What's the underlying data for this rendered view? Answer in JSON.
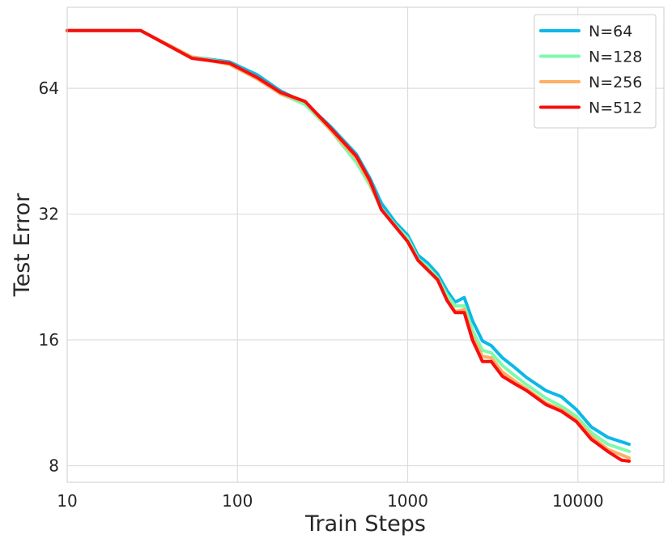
{
  "chart_data": {
    "type": "line",
    "xlabel": "Train Steps",
    "ylabel": "Test Error",
    "x_scale": "log",
    "y_scale": "log2",
    "xlim": [
      10,
      32000
    ],
    "ylim": [
      7.3,
      100
    ],
    "x_ticks": [
      10,
      100,
      1000,
      10000
    ],
    "x_tick_labels": [
      "10",
      "100",
      "1000",
      "10000"
    ],
    "y_ticks": [
      8,
      16,
      32,
      64
    ],
    "y_tick_labels": [
      "8",
      "16",
      "32",
      "64"
    ],
    "grid": true,
    "legend_position": "top-right",
    "series": [
      {
        "name": "N=64",
        "color": "#0cb8e8",
        "points": [
          [
            10,
            88
          ],
          [
            27,
            88
          ],
          [
            54,
            76
          ],
          [
            90,
            74
          ],
          [
            130,
            69
          ],
          [
            180,
            63
          ],
          [
            250,
            59
          ],
          [
            350,
            52
          ],
          [
            500,
            44.5
          ],
          [
            600,
            39
          ],
          [
            700,
            34
          ],
          [
            850,
            30.5
          ],
          [
            1000,
            28.5
          ],
          [
            1150,
            25.5
          ],
          [
            1300,
            24.5
          ],
          [
            1500,
            23
          ],
          [
            1700,
            21
          ],
          [
            1900,
            19.7
          ],
          [
            2150,
            20.2
          ],
          [
            2400,
            17.8
          ],
          [
            2750,
            15.9
          ],
          [
            3100,
            15.5
          ],
          [
            3600,
            14.5
          ],
          [
            4200,
            13.8
          ],
          [
            5000,
            13.0
          ],
          [
            6500,
            12.1
          ],
          [
            8000,
            11.7
          ],
          [
            9800,
            10.9
          ],
          [
            12000,
            9.9
          ],
          [
            15000,
            9.35
          ],
          [
            20000,
            9.0
          ]
        ]
      },
      {
        "name": "N=128",
        "color": "#7dfaab",
        "points": [
          [
            10,
            88
          ],
          [
            27,
            88
          ],
          [
            54,
            76
          ],
          [
            90,
            73.5
          ],
          [
            130,
            68
          ],
          [
            180,
            62
          ],
          [
            250,
            58.5
          ],
          [
            350,
            51
          ],
          [
            500,
            42.5
          ],
          [
            600,
            37.5
          ],
          [
            700,
            33
          ],
          [
            850,
            30
          ],
          [
            1000,
            28
          ],
          [
            1150,
            25
          ],
          [
            1300,
            24
          ],
          [
            1500,
            22.5
          ],
          [
            1700,
            20.5
          ],
          [
            1900,
            19.3
          ],
          [
            2150,
            19.3
          ],
          [
            2400,
            16.9
          ],
          [
            2750,
            15.1
          ],
          [
            3100,
            14.9
          ],
          [
            3600,
            13.9
          ],
          [
            4200,
            13.2
          ],
          [
            5000,
            12.5
          ],
          [
            6500,
            11.6
          ],
          [
            8000,
            11.1
          ],
          [
            9800,
            10.5
          ],
          [
            12000,
            9.6
          ],
          [
            15000,
            9.0
          ],
          [
            20000,
            8.65
          ]
        ]
      },
      {
        "name": "N=256",
        "color": "#fdaf64",
        "points": [
          [
            10,
            88
          ],
          [
            27,
            88
          ],
          [
            54,
            76
          ],
          [
            90,
            73
          ],
          [
            130,
            67.5
          ],
          [
            180,
            62
          ],
          [
            250,
            59.5
          ],
          [
            350,
            51
          ],
          [
            500,
            43.5
          ],
          [
            600,
            38
          ],
          [
            700,
            32.8
          ],
          [
            850,
            29.8
          ],
          [
            1000,
            27.5
          ],
          [
            1150,
            24.8
          ],
          [
            1300,
            23.6
          ],
          [
            1500,
            22.2
          ],
          [
            1700,
            20.0
          ],
          [
            1900,
            18.7
          ],
          [
            2150,
            18.9
          ],
          [
            2400,
            16.3
          ],
          [
            2750,
            14.6
          ],
          [
            3100,
            14.5
          ],
          [
            3600,
            13.4
          ],
          [
            4200,
            12.8
          ],
          [
            5000,
            12.2
          ],
          [
            6500,
            11.3
          ],
          [
            8000,
            10.9
          ],
          [
            9800,
            10.3
          ],
          [
            12000,
            9.4
          ],
          [
            15000,
            8.75
          ],
          [
            20000,
            8.35
          ]
        ]
      },
      {
        "name": "N=512",
        "color": "#f80e0e",
        "points": [
          [
            10,
            88
          ],
          [
            27,
            88
          ],
          [
            54,
            75.5
          ],
          [
            90,
            73.5
          ],
          [
            130,
            68
          ],
          [
            180,
            62.5
          ],
          [
            250,
            59.5
          ],
          [
            350,
            51.5
          ],
          [
            500,
            44
          ],
          [
            600,
            38.5
          ],
          [
            700,
            32.8
          ],
          [
            850,
            29.8
          ],
          [
            1000,
            27.5
          ],
          [
            1150,
            24.8
          ],
          [
            1300,
            23.6
          ],
          [
            1500,
            22.3
          ],
          [
            1700,
            19.9
          ],
          [
            1900,
            18.6
          ],
          [
            2150,
            18.6
          ],
          [
            2400,
            16.0
          ],
          [
            2750,
            14.2
          ],
          [
            3100,
            14.2
          ],
          [
            3600,
            13.1
          ],
          [
            4200,
            12.6
          ],
          [
            5000,
            12.1
          ],
          [
            6500,
            11.2
          ],
          [
            8000,
            10.8
          ],
          [
            9800,
            10.2
          ],
          [
            12000,
            9.25
          ],
          [
            15000,
            8.65
          ],
          [
            18000,
            8.25
          ],
          [
            20000,
            8.2
          ]
        ]
      }
    ]
  }
}
